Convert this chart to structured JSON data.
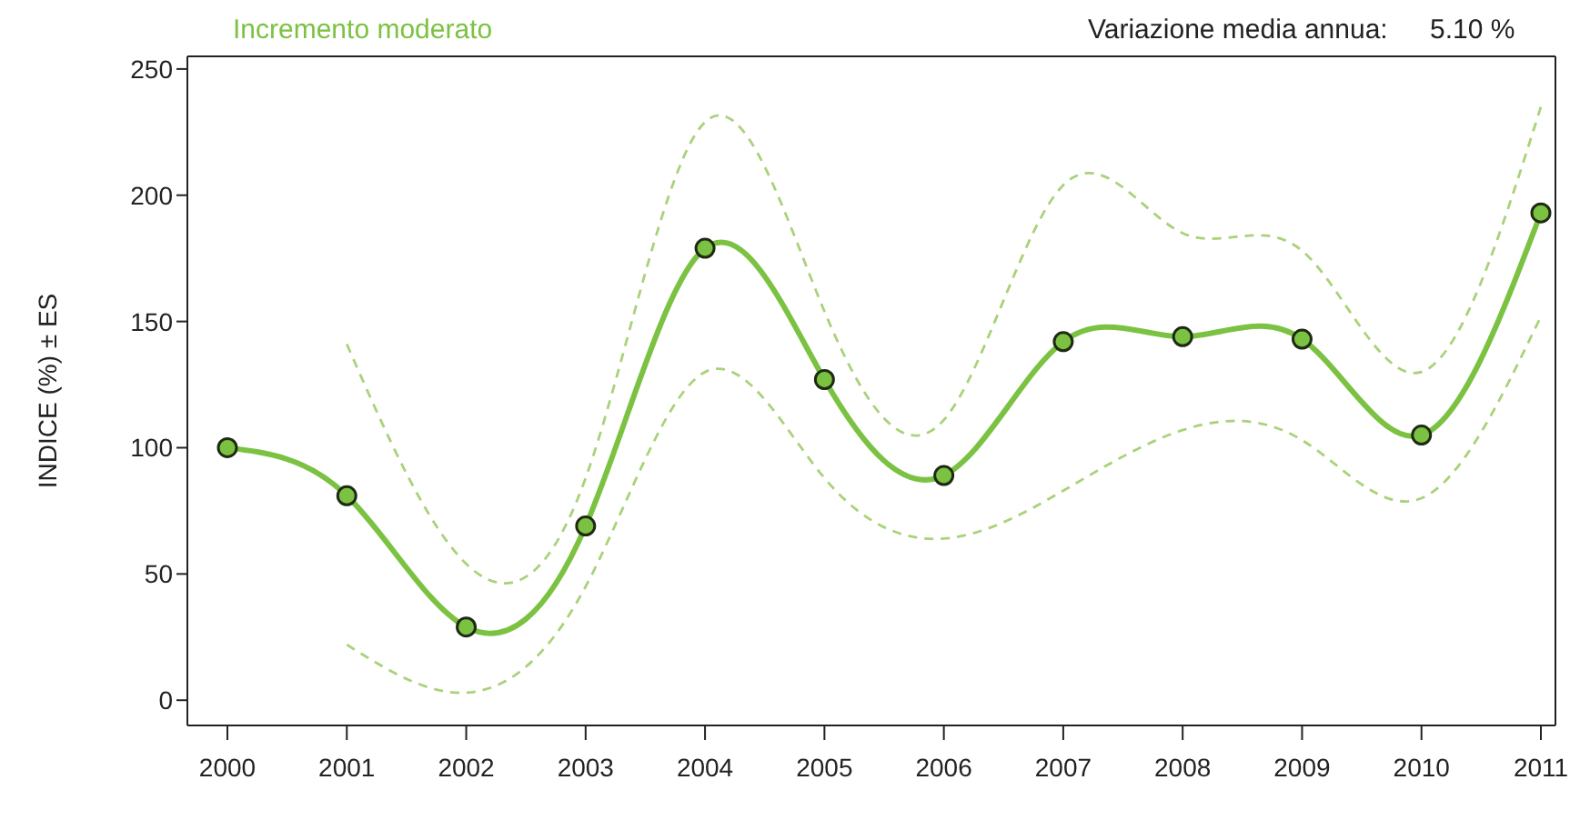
{
  "chart_data": {
    "type": "line",
    "ylabel": "INDICE (%) ± ES",
    "annotations": [
      "Incremento moderato",
      "Variazione media annua:",
      "5.10 %"
    ],
    "categories": [
      "2000",
      "2001",
      "2002",
      "2003",
      "2004",
      "2005",
      "2006",
      "2007",
      "2008",
      "2009",
      "2010",
      "2011"
    ],
    "series": [
      {
        "color": "#a9d27a",
        "line_style": "dashed",
        "marker": "none",
        "values": [
          null,
          22,
          3,
          45,
          130,
          88,
          64,
          83,
          107,
          103,
          80,
          152
        ]
      },
      {
        "color": "#a9d27a",
        "line_style": "dashed",
        "marker": "none",
        "values": [
          null,
          141,
          54,
          88,
          229,
          154,
          111,
          204,
          185,
          178,
          130,
          235
        ]
      },
      {
        "color": "#7cc242",
        "values": [
          100,
          81,
          29,
          69,
          179,
          127,
          89,
          142,
          144,
          143,
          105,
          193
        ]
      }
    ],
    "ylim": [
      -10,
      255
    ],
    "yticks": [
      0,
      50,
      100,
      150,
      200,
      250
    ],
    "marker": "circle",
    "line_style": "solid"
  }
}
